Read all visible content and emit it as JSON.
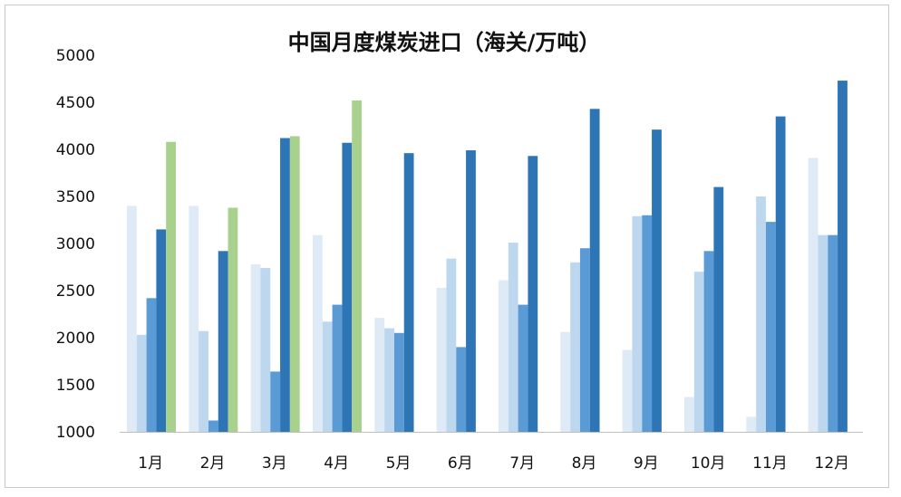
{
  "chart_data": {
    "type": "bar",
    "title": "中国月度煤炭进口（海关/万吨）",
    "xlabel": "",
    "ylabel": "",
    "ylim": [
      1000,
      5000
    ],
    "yticks": [
      1000,
      1500,
      2000,
      2500,
      3000,
      3500,
      4000,
      4500,
      5000
    ],
    "grid": false,
    "legend": "none",
    "categories": [
      "1月",
      "2月",
      "3月",
      "4月",
      "5月",
      "6月",
      "7月",
      "8月",
      "9月",
      "10月",
      "11月",
      "12月"
    ],
    "series": [
      {
        "color": "#deebf7",
        "values": [
          3400,
          3400,
          2780,
          3090,
          2210,
          2530,
          2610,
          2060,
          1870,
          1370,
          1160,
          3910
        ]
      },
      {
        "color": "#bdd7ee",
        "values": [
          2030,
          2070,
          2740,
          2170,
          2100,
          2840,
          3010,
          2800,
          3290,
          2700,
          3500,
          3090
        ]
      },
      {
        "color": "#5b9bd5",
        "values": [
          2420,
          1120,
          1640,
          2350,
          2050,
          1900,
          2350,
          2950,
          3300,
          2920,
          3230,
          3090
        ]
      },
      {
        "color": "#2e75b6",
        "values": [
          3150,
          2920,
          4120,
          4070,
          3960,
          3990,
          3930,
          4430,
          4210,
          3600,
          4350,
          4730
        ]
      },
      {
        "color": "#a9d18e",
        "values": [
          4080,
          3380,
          4140,
          4520,
          null,
          null,
          null,
          null,
          null,
          null,
          null,
          null
        ]
      }
    ]
  },
  "colors": {
    "background": "#ffffff",
    "axis_line": "#bfbfbf",
    "frame_border": "#c9c9c9",
    "text": "#111111"
  }
}
